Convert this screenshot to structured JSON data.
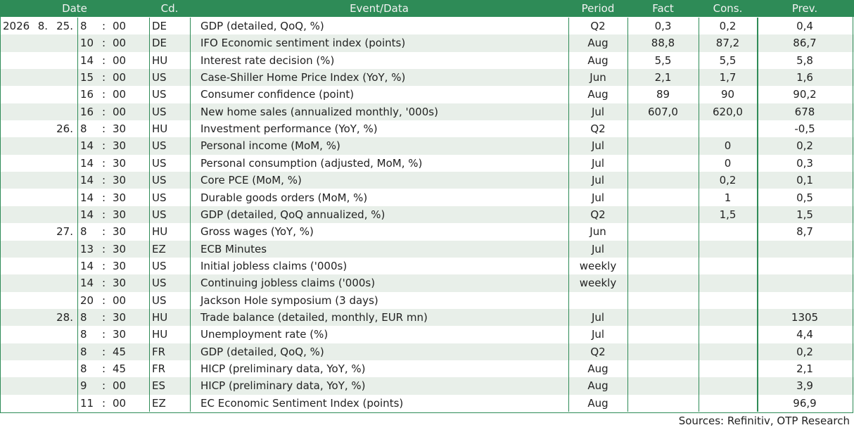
{
  "table": {
    "header": [
      "Date",
      "Cd.",
      "Event/Data",
      "Period",
      "Fact",
      "Cons.",
      "Prev."
    ],
    "time_separator": ":",
    "rows": [
      [
        "2026",
        "8.",
        "25.",
        "8",
        "00",
        "DE",
        "GDP (detailed, QoQ, %)",
        "Q2",
        "0,3",
        "0,2",
        "0,4"
      ],
      [
        null,
        null,
        null,
        "10",
        "00",
        "DE",
        "IFO Economic sentiment index (points)",
        "Aug",
        "88,8",
        "87,2",
        "86,7"
      ],
      [
        null,
        null,
        null,
        "14",
        "00",
        "HU",
        "Interest rate decision (%)",
        "Aug",
        "5,5",
        "5,5",
        "5,8"
      ],
      [
        null,
        null,
        null,
        "15",
        "00",
        "US",
        "Case-Shiller Home Price Index (YoY, %)",
        "Jun",
        "2,1",
        "1,7",
        "1,6"
      ],
      [
        null,
        null,
        null,
        "16",
        "00",
        "US",
        "Consumer confidence (point)",
        "Aug",
        "89",
        "90",
        "90,2"
      ],
      [
        null,
        null,
        null,
        "16",
        "00",
        "US",
        "New home sales (annualized monthly, '000s)",
        "Jul",
        "607,0",
        "620,0",
        "678"
      ],
      [
        null,
        null,
        "26.",
        "8",
        "30",
        "HU",
        "Investment performance (YoY, %)",
        "Q2",
        null,
        null,
        "-0,5"
      ],
      [
        null,
        null,
        null,
        "14",
        "30",
        "US",
        "Personal income (MoM, %)",
        "Jul",
        null,
        "0",
        "0,2"
      ],
      [
        null,
        null,
        null,
        "14",
        "30",
        "US",
        "Personal consumption (adjusted, MoM, %)",
        "Jul",
        null,
        "0",
        "0,3"
      ],
      [
        null,
        null,
        null,
        "14",
        "30",
        "US",
        "Core PCE (MoM, %)",
        "Jul",
        null,
        "0,2",
        "0,1"
      ],
      [
        null,
        null,
        null,
        "14",
        "30",
        "US",
        "Durable goods orders (MoM, %)",
        "Jul",
        null,
        "1",
        "0,5"
      ],
      [
        null,
        null,
        null,
        "14",
        "30",
        "US",
        "GDP (detailed, QoQ annualized, %)",
        "Q2",
        null,
        "1,5",
        "1,5"
      ],
      [
        null,
        null,
        "27.",
        "8",
        "30",
        "HU",
        "Gross wages (YoY, %)",
        "Jun",
        null,
        null,
        "8,7"
      ],
      [
        null,
        null,
        null,
        "13",
        "30",
        "EZ",
        "ECB Minutes",
        "Jul",
        null,
        null,
        null
      ],
      [
        null,
        null,
        null,
        "14",
        "30",
        "US",
        "Initial jobless claims ('000s)",
        "weekly",
        null,
        null,
        null
      ],
      [
        null,
        null,
        null,
        "14",
        "30",
        "US",
        "Continuing jobless claims ('000s)",
        "weekly",
        null,
        null,
        null
      ],
      [
        null,
        null,
        null,
        "20",
        "00",
        "US",
        "Jackson Hole symposium (3 days)",
        null,
        null,
        null,
        null
      ],
      [
        null,
        null,
        "28.",
        "8",
        "30",
        "HU",
        "Trade balance (detailed, monthly, EUR mn)",
        "Jul",
        null,
        null,
        "1305"
      ],
      [
        null,
        null,
        null,
        "8",
        "30",
        "HU",
        "Unemployment rate (%)",
        "Jul",
        null,
        null,
        "4,4"
      ],
      [
        null,
        null,
        null,
        "8",
        "45",
        "FR",
        "GDP (detailed, QoQ, %)",
        "Q2",
        null,
        null,
        "0,2"
      ],
      [
        null,
        null,
        null,
        "8",
        "45",
        "FR",
        "HICP (preliminary data, YoY, %)",
        "Aug",
        null,
        null,
        "2,1"
      ],
      [
        null,
        null,
        null,
        "9",
        "00",
        "ES",
        "HICP (preliminary data, YoY, %)",
        "Aug",
        null,
        null,
        "3,9"
      ],
      [
        null,
        null,
        null,
        "11",
        "00",
        "EZ",
        "EC Economic Sentiment Index (points)",
        "Aug",
        null,
        null,
        "96,9"
      ]
    ]
  },
  "footer": {
    "source": "Sources: Refinitiv, OTP Research"
  }
}
